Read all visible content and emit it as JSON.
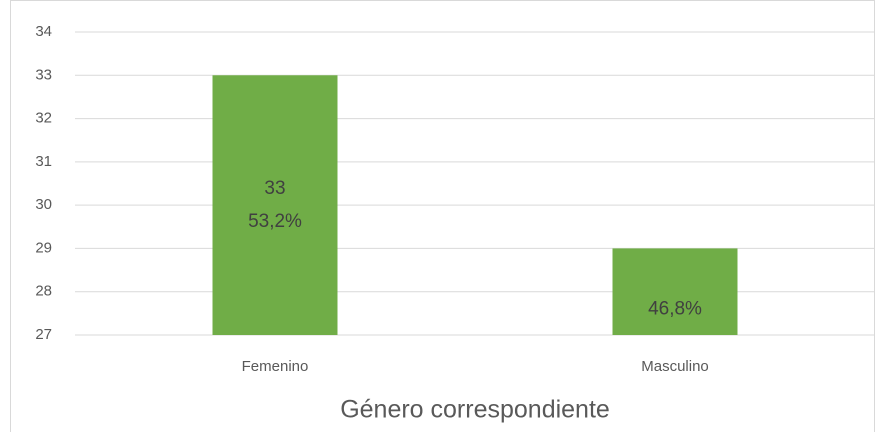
{
  "chart_data": {
    "type": "bar",
    "categories": [
      "Femenino",
      "Masculino"
    ],
    "values": [
      33,
      29
    ],
    "value_labels": [
      "33",
      null
    ],
    "percent_labels": [
      "53,2%",
      "46,8%"
    ],
    "color": "#70ad47",
    "x_label": "Género correspondiente",
    "ylim": [
      27,
      34
    ],
    "yticks": [
      27,
      28,
      29,
      30,
      31,
      32,
      33,
      34
    ],
    "grid": true
  }
}
